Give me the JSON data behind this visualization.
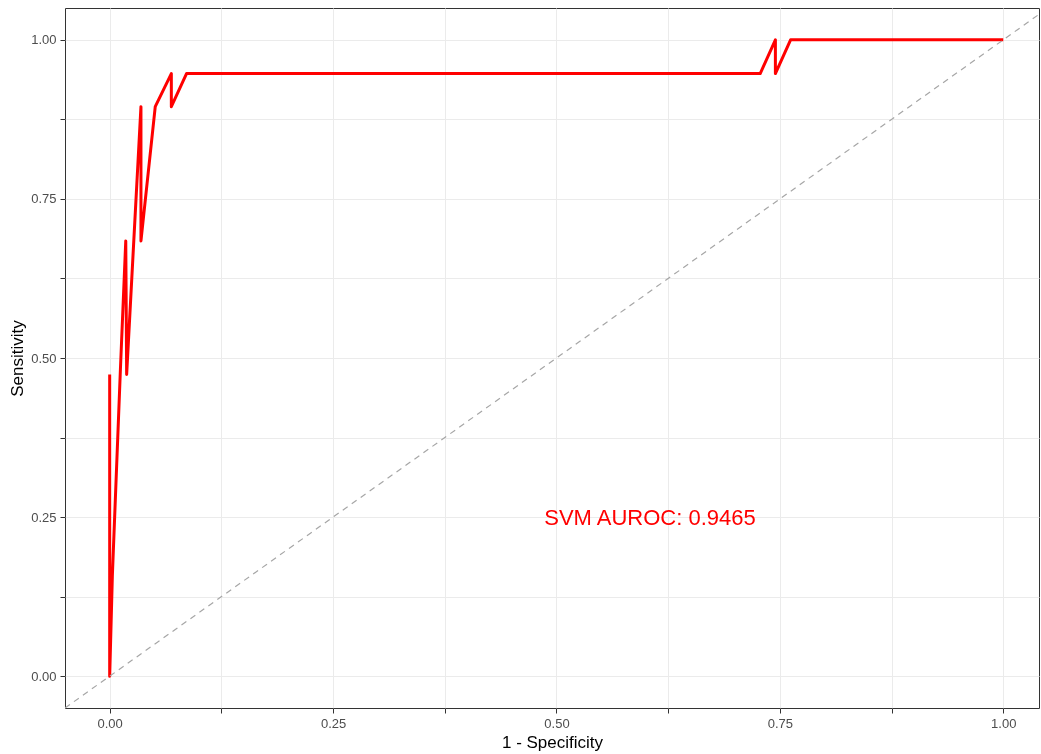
{
  "chart_data": {
    "type": "line",
    "xlabel": "1 - Specificity",
    "ylabel": "Sensitivity",
    "xlim": [
      -0.05,
      1.04
    ],
    "ylim": [
      -0.05,
      1.05
    ],
    "xticks": [
      {
        "value": 0,
        "label": "0.00"
      },
      {
        "value": 0.125,
        "label": null
      },
      {
        "value": 0.25,
        "label": "0.25"
      },
      {
        "value": 0.375,
        "label": null
      },
      {
        "value": 0.5,
        "label": "0.50"
      },
      {
        "value": 0.625,
        "label": null
      },
      {
        "value": 0.75,
        "label": "0.75"
      },
      {
        "value": 0.875,
        "label": null
      },
      {
        "value": 1,
        "label": "1.00"
      }
    ],
    "yticks": [
      {
        "value": 0,
        "label": "0.00"
      },
      {
        "value": 0.125,
        "label": null
      },
      {
        "value": 0.25,
        "label": "0.25"
      },
      {
        "value": 0.375,
        "label": null
      },
      {
        "value": 0.5,
        "label": "0.50"
      },
      {
        "value": 0.625,
        "label": null
      },
      {
        "value": 0.75,
        "label": "0.75"
      },
      {
        "value": 0.875,
        "label": null
      },
      {
        "value": 1,
        "label": "1.00"
      }
    ],
    "grid": true,
    "marker": "none",
    "series": [
      {
        "color": "#ff0000",
        "line_style": "solid",
        "x": [
          0,
          0,
          0.003,
          0.012,
          0.018,
          0.019,
          0.035,
          0.035,
          0.051,
          0.069,
          0.069,
          0.086,
          0.728,
          0.745,
          0.745,
          0.762,
          1.0
        ],
        "values": [
          0.474,
          0,
          0.158,
          0.482,
          0.684,
          0.474,
          0.895,
          0.684,
          0.895,
          0.947,
          0.895,
          0.947,
          0.947,
          1.0,
          0.947,
          1.0,
          1.0
        ]
      },
      {
        "color": "#a6a6a6",
        "line_style": "dashed",
        "x": [
          -0.05,
          1.04
        ],
        "values": [
          -0.05,
          1.04
        ]
      }
    ],
    "annotations": [
      "SVM AUROC: 0.9465"
    ]
  }
}
